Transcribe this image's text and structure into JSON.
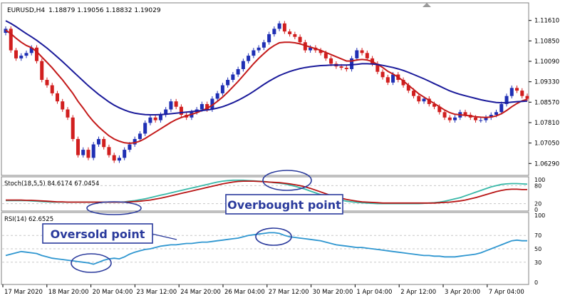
{
  "colors": {
    "bull": "#1f2fb4",
    "bear": "#d11f1f",
    "ma_fast": "#c41a1a",
    "ma_slow": "#1a1a9a",
    "stoch_main": "#38b8a8",
    "stoch_signal": "#b81414",
    "rsi": "#2e96d0",
    "annotation": "#2a3a9c",
    "grid": "#c8c8c8",
    "axis_text": "#000000"
  },
  "annotations": {
    "overbought": "Overbought point",
    "oversold": "Oversold point"
  },
  "chart_data": [
    {
      "type": "candlestick",
      "title": "EURUSD,H4",
      "ohlc_readout": "1.18879 1.19056 1.18832 1.19029",
      "ylim": [
        1.059,
        1.12
      ],
      "yticks": [
        "1.11610",
        "1.10850",
        "1.10090",
        "1.09330",
        "1.08570",
        "1.07810",
        "1.07050",
        "1.06290"
      ],
      "x_labels": [
        "17 Mar 2020",
        "18 Mar 20:00",
        "20 Mar 04:00",
        "23 Mar 12:00",
        "24 Mar 20:00",
        "26 Mar 04:00",
        "27 Mar 12:00",
        "30 Mar 20:00",
        "1 Apr 04:00",
        "2 Apr 12:00",
        "3 Apr 20:00",
        "7 Apr 04:00"
      ],
      "close": [
        1.113,
        1.105,
        1.102,
        1.103,
        1.104,
        1.106,
        1.101,
        1.094,
        1.092,
        1.089,
        1.086,
        1.083,
        1.08,
        1.072,
        1.066,
        1.068,
        1.065,
        1.07,
        1.072,
        1.069,
        1.066,
        1.064,
        1.065,
        1.068,
        1.07,
        1.072,
        1.074,
        1.078,
        1.08,
        1.079,
        1.081,
        1.083,
        1.086,
        1.084,
        1.081,
        1.08,
        1.082,
        1.083,
        1.085,
        1.083,
        1.087,
        1.089,
        1.092,
        1.094,
        1.096,
        1.098,
        1.101,
        1.103,
        1.105,
        1.106,
        1.108,
        1.111,
        1.113,
        1.115,
        1.112,
        1.111,
        1.11,
        1.108,
        1.105,
        1.106,
        1.105,
        1.104,
        1.102,
        1.1,
        1.099,
        1.0985,
        1.098,
        1.102,
        1.105,
        1.104,
        1.102,
        1.1,
        1.097,
        1.095,
        1.093,
        1.096,
        1.094,
        1.092,
        1.09,
        1.088,
        1.086,
        1.087,
        1.085,
        1.084,
        1.082,
        1.08,
        1.079,
        1.08,
        1.082,
        1.081,
        1.08,
        1.079,
        1.079,
        1.08,
        1.081,
        1.082,
        1.085,
        1.088,
        1.091,
        1.09,
        1.088,
        1.087
      ],
      "series": [
        {
          "name": "",
          "type": "line",
          "color_key": "ma_fast",
          "values": [
            1.1125,
            1.1112,
            1.1095,
            1.108,
            1.1068,
            1.106,
            1.1045,
            1.1025,
            1.1005,
            1.0985,
            1.0962,
            1.094,
            1.0915,
            1.089,
            1.086,
            1.0835,
            1.0808,
            1.0785,
            1.0765,
            1.0748,
            1.0732,
            1.072,
            1.0712,
            1.0706,
            1.0704,
            1.0706,
            1.0712,
            1.0722,
            1.0734,
            1.0746,
            1.0758,
            1.077,
            1.0782,
            1.0792,
            1.08,
            1.0806,
            1.0812,
            1.0818,
            1.0826,
            1.0834,
            1.0846,
            1.086,
            1.0876,
            1.0894,
            1.0914,
            1.0934,
            1.0956,
            1.0978,
            1.1,
            1.102,
            1.1038,
            1.1055,
            1.1068,
            1.1078,
            1.108,
            1.108,
            1.1078,
            1.1074,
            1.1068,
            1.1062,
            1.1056,
            1.105,
            1.1042,
            1.1034,
            1.1026,
            1.1018,
            1.101,
            1.101,
            1.1014,
            1.1016,
            1.1014,
            1.1008,
            1.0998,
            1.0986,
            1.0972,
            1.0962,
            1.095,
            1.0936,
            1.092,
            1.0904,
            1.0888,
            1.0876,
            1.0864,
            1.0852,
            1.084,
            1.0828,
            1.0818,
            1.0812,
            1.081,
            1.0808,
            1.0806,
            1.0803,
            1.0801,
            1.08,
            1.0802,
            1.0806,
            1.0814,
            1.0826,
            1.084,
            1.0852,
            1.0862,
            1.0868
          ]
        },
        {
          "name": "",
          "type": "line",
          "color_key": "ma_slow",
          "values": [
            1.116,
            1.115,
            1.1138,
            1.1125,
            1.1112,
            1.11,
            1.1087,
            1.1073,
            1.1058,
            1.1042,
            1.1025,
            1.1008,
            1.099,
            1.0972,
            1.0954,
            1.0936,
            1.0918,
            1.0902,
            1.0886,
            1.0872,
            1.0858,
            1.0846,
            1.0836,
            1.0828,
            1.0821,
            1.0816,
            1.0813,
            1.0811,
            1.081,
            1.081,
            1.0811,
            1.0812,
            1.0814,
            1.0816,
            1.0818,
            1.082,
            1.0822,
            1.0824,
            1.0826,
            1.0828,
            1.0831,
            1.0835,
            1.084,
            1.0847,
            1.0855,
            1.0864,
            1.0874,
            1.0885,
            1.0897,
            1.091,
            1.0923,
            1.0935,
            1.0946,
            1.0956,
            1.0964,
            1.0971,
            1.0977,
            1.0982,
            1.0986,
            1.0989,
            1.0991,
            1.0993,
            1.0994,
            1.0995,
            1.0995,
            1.0995,
            1.0995,
            1.0996,
            1.0998,
            1.1,
            1.1,
            1.0999,
            1.0997,
            1.0994,
            1.099,
            1.0986,
            1.0981,
            1.0975,
            1.0968,
            1.096,
            1.0952,
            1.0944,
            1.0935,
            1.0926,
            1.0917,
            1.0908,
            1.0899,
            1.0892,
            1.0886,
            1.0881,
            1.0876,
            1.0871,
            1.0866,
            1.0862,
            1.0859,
            1.0856,
            1.0855,
            1.0855,
            1.0857,
            1.0859,
            1.086,
            1.0861
          ]
        }
      ]
    },
    {
      "type": "line",
      "title": "Stoch(18,5,5) 84.6174 67.0454",
      "ylim": [
        0,
        100
      ],
      "yticks": [
        "100",
        "80",
        "20",
        "0"
      ],
      "series": [
        {
          "name": "",
          "color_key": "stoch_main",
          "values": [
            30,
            30,
            30,
            30,
            30,
            29,
            28,
            27,
            26,
            25,
            25,
            25,
            25,
            25,
            25,
            25,
            25,
            25,
            25,
            25,
            25,
            25,
            25,
            26,
            28,
            30,
            33,
            36,
            40,
            44,
            48,
            52,
            56,
            60,
            64,
            68,
            72,
            76,
            80,
            84,
            88,
            92,
            95,
            97,
            98,
            98,
            98,
            97,
            96,
            95,
            94,
            92,
            90,
            88,
            86,
            82,
            78,
            73,
            68,
            62,
            56,
            50,
            45,
            40,
            36,
            32,
            28,
            26,
            24,
            23,
            22,
            21,
            20,
            20,
            20,
            20,
            20,
            20,
            20,
            20,
            20,
            21,
            22,
            23,
            25,
            28,
            32,
            36,
            40,
            46,
            52,
            58,
            64,
            70,
            76,
            80,
            84,
            86,
            87,
            87,
            86,
            85
          ]
        },
        {
          "name": "",
          "color_key": "stoch_signal",
          "values": [
            32,
            32,
            32,
            32,
            31,
            31,
            30,
            29,
            28,
            27,
            26,
            26,
            25,
            25,
            25,
            25,
            25,
            25,
            25,
            25,
            25,
            25,
            25,
            25,
            26,
            27,
            28,
            30,
            32,
            35,
            38,
            42,
            46,
            50,
            54,
            58,
            62,
            66,
            70,
            74,
            78,
            82,
            86,
            89,
            92,
            94,
            95,
            95,
            95,
            94,
            93,
            92,
            91,
            90,
            88,
            86,
            83,
            80,
            76,
            71,
            65,
            59,
            53,
            47,
            42,
            38,
            34,
            31,
            28,
            26,
            25,
            24,
            23,
            22,
            22,
            22,
            22,
            22,
            22,
            22,
            22,
            22,
            22,
            22,
            23,
            24,
            25,
            27,
            29,
            32,
            36,
            40,
            45,
            50,
            55,
            60,
            64,
            67,
            68,
            68,
            67,
            67
          ]
        }
      ]
    },
    {
      "type": "line",
      "title": "RSI(14) 62.6525",
      "ylim": [
        0,
        100
      ],
      "yticks": [
        "100",
        "70",
        "50",
        "30",
        "0"
      ],
      "series": [
        {
          "name": "",
          "color_key": "rsi",
          "values": [
            40,
            42,
            44,
            46,
            45,
            44,
            43,
            40,
            38,
            36,
            35,
            34,
            33,
            32,
            31,
            30,
            29,
            27,
            30,
            33,
            35,
            36,
            35,
            38,
            42,
            45,
            47,
            49,
            50,
            52,
            54,
            55,
            56,
            56,
            57,
            58,
            58,
            59,
            60,
            60,
            61,
            62,
            63,
            64,
            65,
            66,
            68,
            70,
            71,
            72,
            73,
            74,
            74,
            73,
            70,
            68,
            67,
            66,
            65,
            64,
            63,
            62,
            60,
            58,
            56,
            55,
            54,
            53,
            52,
            52,
            51,
            50,
            49,
            48,
            47,
            46,
            45,
            44,
            43,
            42,
            41,
            40,
            40,
            39,
            39,
            38,
            38,
            38,
            39,
            40,
            41,
            42,
            44,
            47,
            50,
            53,
            56,
            59,
            62,
            63,
            62,
            62
          ]
        }
      ]
    }
  ]
}
